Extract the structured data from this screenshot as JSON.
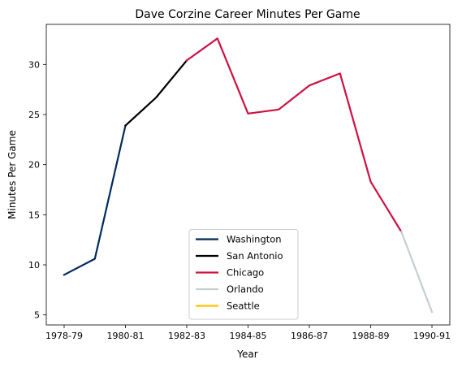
{
  "chart_data": {
    "type": "line",
    "title": "Dave Corzine Career Minutes Per Game",
    "xlabel": "Year",
    "ylabel": "Minutes Per Game",
    "x": [
      "1978-79",
      "1979-80",
      "1980-81",
      "1981-82",
      "1982-83",
      "1983-84",
      "1984-85",
      "1985-86",
      "1986-87",
      "1987-88",
      "1988-89",
      "1989-90",
      "1990-91"
    ],
    "x_tick_labels": [
      "1978-79",
      "1980-81",
      "1982-83",
      "1984-85",
      "1986-87",
      "1988-89",
      "1990-91"
    ],
    "y_ticks": [
      5,
      10,
      15,
      20,
      25,
      30
    ],
    "ylim": [
      4.0,
      34.0
    ],
    "grid": false,
    "legend_position": "lower center",
    "series": [
      {
        "name": "Washington",
        "color": "#002B5C",
        "points": [
          [
            "1978-79",
            9.0
          ],
          [
            "1979-80",
            10.6
          ],
          [
            "1980-81",
            23.9
          ]
        ]
      },
      {
        "name": "San Antonio",
        "color": "#000000",
        "points": [
          [
            "1980-81",
            23.9
          ],
          [
            "1981-82",
            26.7
          ],
          [
            "1982-83",
            30.4
          ]
        ]
      },
      {
        "name": "Chicago",
        "color": "#CE1141",
        "points": [
          [
            "1982-83",
            30.4
          ],
          [
            "1983-84",
            32.6
          ],
          [
            "1984-85",
            25.1
          ],
          [
            "1985-86",
            25.5
          ],
          [
            "1986-87",
            27.9
          ],
          [
            "1987-88",
            29.1
          ],
          [
            "1988-89",
            18.3
          ],
          [
            "1989-90",
            13.3
          ]
        ]
      },
      {
        "name": "Orlando",
        "color": "#C4CED4",
        "points": [
          [
            "1989-90",
            13.3
          ],
          [
            "1990-91",
            5.3
          ]
        ]
      },
      {
        "name": "Seattle",
        "color": "#FFC200",
        "points": []
      }
    ]
  }
}
